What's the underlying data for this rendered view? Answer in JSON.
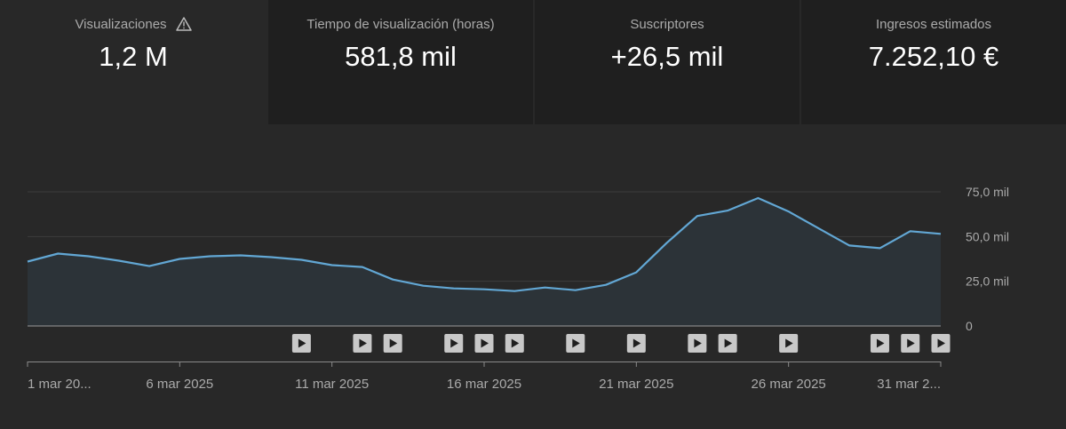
{
  "metrics": [
    {
      "label": "Visualizaciones",
      "value": "1,2 M",
      "warning_icon": "warning-icon",
      "active": true
    },
    {
      "label": "Tiempo de visualización (horas)",
      "value": "581,8 mil",
      "active": false
    },
    {
      "label": "Suscriptores",
      "value": "+26,5 mil",
      "active": false
    },
    {
      "label": "Ingresos estimados",
      "value": "7.252,10 €",
      "active": false
    }
  ],
  "colors": {
    "line": "#62a7d4",
    "area": "#2c3338",
    "grid": "#3c3c3c",
    "axis_text": "#aaaaaa",
    "marker_bg": "#c8c8c8",
    "marker_icon": "#1f1f1f"
  },
  "chart_data": {
    "type": "area",
    "series": [
      {
        "x": [
          "1 mar",
          "2 mar",
          "3 mar",
          "4 mar",
          "5 mar",
          "6 mar",
          "7 mar",
          "8 mar",
          "9 mar",
          "10 mar",
          "11 mar",
          "12 mar",
          "13 mar",
          "14 mar",
          "15 mar",
          "16 mar",
          "17 mar",
          "18 mar",
          "19 mar",
          "20 mar",
          "21 mar",
          "22 mar",
          "23 mar",
          "24 mar",
          "25 mar",
          "26 mar",
          "27 mar",
          "28 mar",
          "29 mar",
          "30 mar",
          "31 mar"
        ],
        "values": [
          36000,
          40500,
          39000,
          36500,
          33500,
          37500,
          39000,
          39500,
          38500,
          37000,
          34000,
          33000,
          26000,
          22500,
          21000,
          20500,
          19500,
          21500,
          20000,
          23000,
          30000,
          46500,
          61500,
          64500,
          71500,
          64000,
          54500,
          45000,
          43500,
          53000,
          51500
        ]
      }
    ],
    "ylim": [
      0,
      75000
    ],
    "y_ticks": [
      "0",
      "25,0 mil",
      "50,0 mil",
      "75,0 mil"
    ],
    "y_tick_values": [
      0,
      25000,
      50000,
      75000
    ],
    "x_tick_labels": [
      "1 mar 20...",
      "6 mar 2025",
      "11 mar 2025",
      "16 mar 2025",
      "21 mar 2025",
      "26 mar 2025",
      "31 mar 2..."
    ],
    "x_tick_days": [
      1,
      6,
      11,
      16,
      21,
      26,
      31
    ],
    "video_marker_days": [
      10,
      12,
      13,
      15,
      16,
      17,
      19,
      21,
      23,
      24,
      26,
      29,
      30,
      31
    ],
    "grid": true
  }
}
